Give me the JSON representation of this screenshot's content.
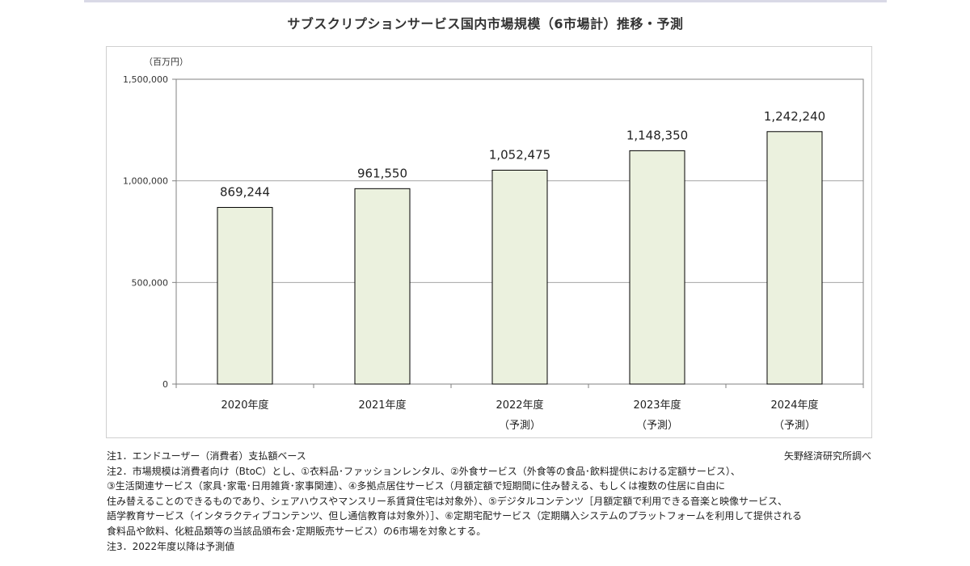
{
  "title": "サブスクリプションサービス国内市場規模（6市場計）推移・予測",
  "chart_data": {
    "type": "bar",
    "unit_label": "（百万円）",
    "categories": [
      "2020年度",
      "2021年度",
      "2022年度",
      "2023年度",
      "2024年度"
    ],
    "sub_labels": [
      "",
      "",
      "（予測）",
      "（予測）",
      "（予測）"
    ],
    "values": [
      869244,
      961550,
      1052475,
      1148350,
      1242240
    ],
    "value_labels": [
      "869,244",
      "961,550",
      "1,052,475",
      "1,148,350",
      "1,242,240"
    ],
    "ylim": [
      0,
      1500000
    ],
    "yticks": [
      0,
      500000,
      1000000,
      1500000
    ],
    "ytick_labels": [
      "0",
      "500,000",
      "1,000,000",
      "1,500,000"
    ],
    "grid": true,
    "bar_fill": "#ebf1de",
    "bar_stroke": "#000000"
  },
  "source": "矢野経済研究所調べ",
  "notes": [
    "注1．エンドユーザー（消費者）支払額ベース",
    "注2．市場規模は消費者向け（BtoC）とし、①衣料品･ファッションレンタル、②外食サービス（外食等の食品･飲料提供における定額サービス）、",
    "③生活関連サービス（家具･家電･日用雑貨･家事関連）、④多拠点居住サービス（月額定額で短期間に住み替える、もしくは複数の住居に自由に",
    "住み替えることのできるものであり、シェアハウスやマンスリー系賃貸住宅は対象外）、⑤デジタルコンテンツ［月額定額で利用できる音楽と映像サービス、",
    "語学教育サービス（インタラクティブコンテンツ、但し通信教育は対象外）］、⑥定期宅配サービス（定期購入システムのプラットフォームを利用して提供される",
    "食料品や飲料、化粧品類等の当該品頒布会･定期販売サービス）の6市場を対象とする。",
    "注3．2022年度以降は予測値"
  ]
}
